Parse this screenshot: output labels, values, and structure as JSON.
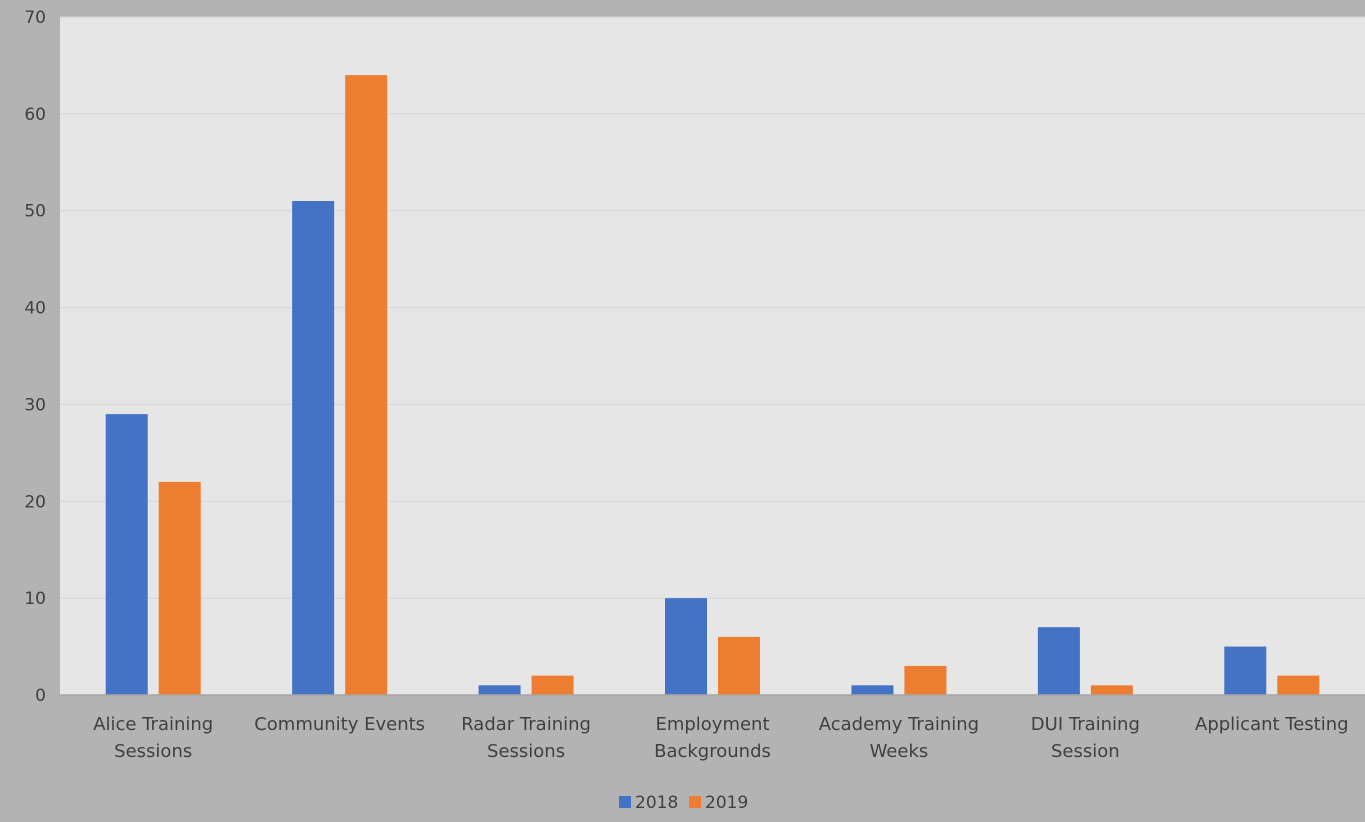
{
  "chart_data": {
    "type": "bar",
    "title": "",
    "xlabel": "",
    "ylabel": "",
    "ylim": [
      0,
      70
    ],
    "yticks": [
      0,
      10,
      20,
      30,
      40,
      50,
      60,
      70
    ],
    "grid": true,
    "legend_position": "bottom",
    "background_color": "#b3b3b3",
    "plot_background_color": "#e6e6e6",
    "categories": [
      [
        "Alice Training",
        "Sessions"
      ],
      [
        "Community Events"
      ],
      [
        "Radar Training",
        "Sessions"
      ],
      [
        "Employment",
        "Backgrounds"
      ],
      [
        "Academy Training",
        "Weeks"
      ],
      [
        "DUI Training",
        "Session"
      ],
      [
        "Applicant Testing"
      ]
    ],
    "series": [
      {
        "name": "2018",
        "color": "#4472c4",
        "values": [
          29,
          51,
          1,
          10,
          1,
          7,
          5
        ]
      },
      {
        "name": "2019",
        "color": "#ed7d31",
        "values": [
          22,
          64,
          2,
          6,
          3,
          1,
          2
        ]
      }
    ]
  }
}
